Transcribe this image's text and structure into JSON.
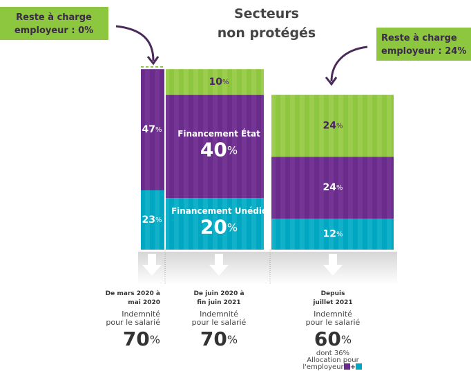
{
  "title": [
    "Secteurs",
    "non protégés"
  ],
  "callouts": [
    {
      "lines": [
        "Reste à charge",
        "employeur : 0%"
      ]
    },
    {
      "lines": [
        "Reste à charge",
        "employeur : 24%"
      ]
    }
  ],
  "columns": [
    {
      "segments": [
        {
          "value": 47,
          "unit": "%"
        },
        {
          "value": 23,
          "unit": "%"
        }
      ],
      "footer": {
        "period": [
          "De mars 2020 à",
          "mai 2020"
        ],
        "indemnity": [
          "Indemnité",
          "pour le salarié"
        ],
        "value": 70,
        "unit": "%"
      }
    },
    {
      "segments": [
        {
          "value": 10,
          "unit": "%"
        },
        {
          "value": 40,
          "unit": "%",
          "caption": "Financement État"
        },
        {
          "value": 20,
          "unit": "%",
          "caption": "Financement Unédic"
        }
      ],
      "footer": {
        "period": [
          "De juin 2020 à",
          "fin juin 2021"
        ],
        "indemnity": [
          "Indemnité",
          "pour le salarié"
        ],
        "value": 70,
        "unit": "%"
      }
    },
    {
      "segments": [
        {
          "value": 24,
          "unit": "%"
        },
        {
          "value": 24,
          "unit": "%"
        },
        {
          "value": 12,
          "unit": "%"
        }
      ],
      "footer": {
        "period": [
          "Depuis",
          "juillet 2021"
        ],
        "indemnity": [
          "Indemnité",
          "pour le salarié"
        ],
        "value": 60,
        "unit": "%",
        "notes": [
          "dont 36%",
          "Allocation pour",
          "l'employeur"
        ],
        "plus": "+"
      }
    }
  ]
}
